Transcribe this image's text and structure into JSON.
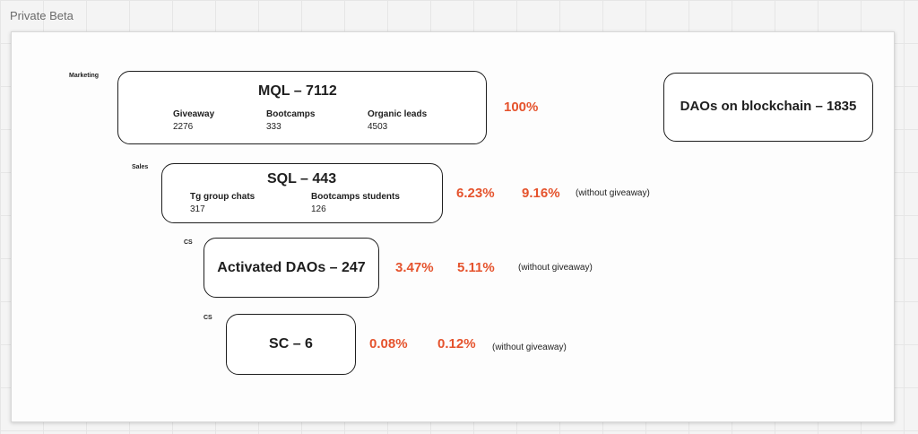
{
  "frame": {
    "title": "Private Beta"
  },
  "colors": {
    "accent": "#e5532d",
    "border": "#1e1e1e"
  },
  "stages": {
    "mql": {
      "tag": "Marketing",
      "title": "MQL – 7112",
      "sources": [
        {
          "label": "Giveaway",
          "value": "2276"
        },
        {
          "label": "Bootcamps",
          "value": "333"
        },
        {
          "label": "Organic leads",
          "value": "4503"
        }
      ],
      "pct": "100%"
    },
    "sql": {
      "tag": "Sales",
      "title": "SQL –  443",
      "sources": [
        {
          "label": "Tg group chats",
          "value": "317"
        },
        {
          "label": "Bootcamps students",
          "value": "126"
        }
      ],
      "pct": "6.23%",
      "pct_alt": "9.16%",
      "note": "(without giveaway)"
    },
    "activated": {
      "tag": "CS",
      "title": "Activated DAOs – 247",
      "pct": "3.47%",
      "pct_alt": "5.11%",
      "note": "(without giveaway)"
    },
    "sc": {
      "tag": "CS",
      "title": "SC – 6",
      "pct": "0.08%",
      "pct_alt": "0.12%",
      "note": "(without giveaway)"
    }
  },
  "daos": {
    "title": "DAOs on blockchain – 1835"
  }
}
